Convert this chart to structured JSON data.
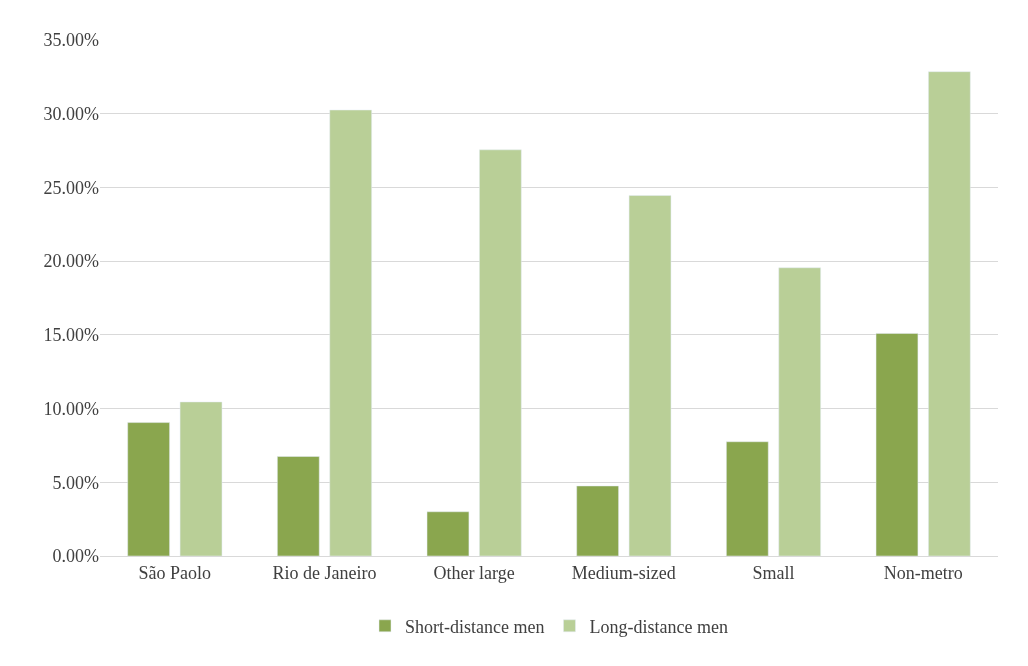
{
  "chart_data": {
    "type": "bar",
    "categories": [
      "São Paolo",
      "Rio de Janeiro",
      "Other large",
      "Medium-sized",
      "Small",
      "Non-metro"
    ],
    "series": [
      {
        "name": "Short-distance men",
        "color": "#8aa64e",
        "values": [
          9.05,
          6.75,
          3.0,
          4.75,
          7.75,
          15.1
        ]
      },
      {
        "name": "Long-distance men",
        "color": "#b9cf97",
        "values": [
          10.45,
          30.25,
          27.55,
          24.45,
          19.55,
          32.85
        ]
      }
    ],
    "ylim": [
      0,
      35
    ],
    "yticks": [
      {
        "value": 0,
        "label": "0.00%"
      },
      {
        "value": 5,
        "label": "5.00%"
      },
      {
        "value": 10,
        "label": "10.00%"
      },
      {
        "value": 15,
        "label": "15.00%"
      },
      {
        "value": 20,
        "label": "20.00%"
      },
      {
        "value": 25,
        "label": "25.00%"
      },
      {
        "value": 30,
        "label": "30.00%"
      },
      {
        "value": 35,
        "label": "35.00%"
      }
    ],
    "grid": "y",
    "legend": "bottom"
  }
}
